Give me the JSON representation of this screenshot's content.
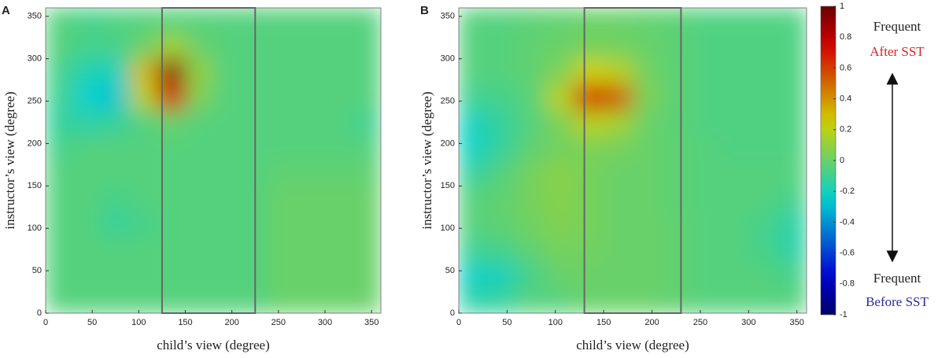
{
  "chart_data": [
    {
      "type": "heatmap",
      "panel": "A",
      "xlabel": "child’s view (degree)",
      "ylabel": "instructor’s view (degree)",
      "xlim": [
        0,
        360
      ],
      "ylim": [
        0,
        360
      ],
      "xticks": [
        0,
        50,
        100,
        150,
        200,
        250,
        300,
        350
      ],
      "yticks": [
        0,
        50,
        100,
        150,
        200,
        250,
        300,
        350
      ],
      "colormap": "jet",
      "zlim": [
        -1,
        1
      ],
      "x": [
        15,
        45,
        75,
        105,
        135,
        165,
        195,
        225,
        255,
        285,
        315,
        345
      ],
      "y": [
        15,
        45,
        75,
        105,
        135,
        165,
        195,
        225,
        255,
        285,
        315,
        345
      ],
      "z": [
        [
          -0.05,
          -0.05,
          -0.05,
          -0.05,
          -0.05,
          -0.05,
          -0.05,
          -0.05,
          0,
          0,
          0,
          0
        ],
        [
          -0.05,
          -0.05,
          -0.05,
          -0.05,
          -0.05,
          -0.05,
          -0.05,
          -0.05,
          0,
          0,
          0,
          0
        ],
        [
          -0.05,
          -0.05,
          -0.05,
          -0.05,
          -0.05,
          -0.05,
          -0.05,
          -0.05,
          0,
          0,
          0,
          0
        ],
        [
          -0.05,
          -0.05,
          -0.12,
          -0.08,
          -0.05,
          -0.05,
          -0.05,
          -0.05,
          0,
          0,
          0,
          0
        ],
        [
          -0.05,
          -0.05,
          -0.08,
          -0.05,
          -0.05,
          -0.05,
          -0.05,
          -0.05,
          0,
          0,
          0,
          0
        ],
        [
          -0.05,
          -0.05,
          -0.05,
          -0.05,
          -0.05,
          -0.05,
          -0.05,
          -0.05,
          -0.02,
          -0.02,
          -0.02,
          -0.02
        ],
        [
          -0.08,
          -0.05,
          -0.05,
          -0.05,
          -0.05,
          -0.05,
          -0.05,
          -0.05,
          -0.05,
          -0.05,
          -0.05,
          -0.05
        ],
        [
          -0.12,
          -0.15,
          -0.12,
          -0.06,
          0,
          -0.05,
          -0.05,
          -0.05,
          -0.05,
          -0.05,
          -0.05,
          -0.1
        ],
        [
          -0.1,
          -0.25,
          -0.28,
          0.2,
          0.75,
          0.05,
          -0.05,
          -0.05,
          -0.05,
          -0.05,
          -0.05,
          -0.05
        ],
        [
          -0.08,
          -0.18,
          -0.2,
          0.3,
          0.9,
          0.1,
          -0.05,
          -0.05,
          -0.05,
          -0.05,
          -0.05,
          -0.05
        ],
        [
          -0.05,
          -0.08,
          -0.08,
          0,
          0.15,
          0,
          -0.05,
          -0.05,
          -0.05,
          -0.05,
          -0.05,
          -0.05
        ],
        [
          -0.05,
          -0.08,
          -0.06,
          -0.05,
          -0.05,
          -0.05,
          -0.05,
          -0.05,
          -0.05,
          -0.05,
          -0.05,
          -0.05
        ]
      ],
      "highlight": {
        "x": [
          125,
          225
        ]
      }
    },
    {
      "type": "heatmap",
      "panel": "B",
      "xlabel": "child’s view (degree)",
      "ylabel": "instructor’s view (degree)",
      "xlim": [
        0,
        360
      ],
      "ylim": [
        0,
        360
      ],
      "xticks": [
        0,
        50,
        100,
        150,
        200,
        250,
        300,
        350
      ],
      "yticks": [
        0,
        50,
        100,
        150,
        200,
        250,
        300,
        350
      ],
      "colormap": "jet",
      "zlim": [
        -1,
        1
      ],
      "zticks": [
        -1,
        -0.8,
        -0.6,
        -0.4,
        -0.2,
        0,
        0.2,
        0.4,
        0.6,
        0.8,
        1
      ],
      "x": [
        15,
        45,
        75,
        105,
        135,
        165,
        195,
        225,
        255,
        285,
        315,
        345
      ],
      "y": [
        15,
        45,
        75,
        105,
        135,
        165,
        195,
        225,
        255,
        285,
        315,
        345
      ],
      "z": [
        [
          -0.15,
          -0.12,
          -0.05,
          -0.05,
          0,
          0,
          0,
          -0.02,
          -0.05,
          -0.05,
          -0.05,
          -0.05
        ],
        [
          -0.22,
          -0.2,
          -0.08,
          0,
          0,
          0,
          0,
          -0.02,
          -0.05,
          -0.05,
          -0.05,
          -0.08
        ],
        [
          -0.1,
          -0.08,
          -0.02,
          0.03,
          0.02,
          0,
          0,
          -0.02,
          -0.05,
          -0.05,
          -0.08,
          -0.15
        ],
        [
          -0.05,
          -0.02,
          0.02,
          0.06,
          0.03,
          0,
          0,
          -0.02,
          -0.05,
          -0.05,
          -0.08,
          -0.15
        ],
        [
          -0.05,
          -0.02,
          0.03,
          0.07,
          0.03,
          0,
          0,
          -0.03,
          -0.05,
          -0.05,
          -0.05,
          -0.08
        ],
        [
          -0.12,
          -0.05,
          0.03,
          0.08,
          0.03,
          0,
          0,
          -0.03,
          -0.05,
          -0.05,
          -0.05,
          -0.05
        ],
        [
          -0.22,
          -0.12,
          -0.02,
          0.02,
          0.05,
          0.03,
          0,
          -0.03,
          -0.05,
          -0.06,
          -0.06,
          -0.06
        ],
        [
          -0.2,
          -0.12,
          -0.05,
          0.05,
          0.2,
          0.15,
          0,
          -0.03,
          -0.06,
          -0.06,
          -0.06,
          -0.06
        ],
        [
          -0.1,
          -0.08,
          -0.03,
          0.2,
          0.75,
          0.55,
          0.05,
          -0.03,
          -0.06,
          -0.06,
          -0.06,
          -0.06
        ],
        [
          -0.05,
          -0.05,
          -0.02,
          0.05,
          0.25,
          0.2,
          0.02,
          -0.03,
          -0.06,
          -0.06,
          -0.06,
          -0.06
        ],
        [
          -0.05,
          -0.05,
          -0.02,
          0,
          0.03,
          0.02,
          0,
          -0.03,
          -0.06,
          -0.06,
          -0.06,
          -0.06
        ],
        [
          -0.05,
          -0.05,
          -0.03,
          -0.02,
          0,
          0,
          -0.02,
          -0.03,
          -0.06,
          -0.06,
          -0.06,
          -0.06
        ]
      ],
      "highlight": {
        "x": [
          130,
          230
        ]
      },
      "annotations": [
        {
          "text": "Frequent",
          "color": "#222222"
        },
        {
          "text": "After SST",
          "color": "#e02020"
        },
        {
          "text": "Frequent",
          "color": "#222222"
        },
        {
          "text": "Before SST",
          "color": "#2a2a9a"
        }
      ]
    }
  ]
}
